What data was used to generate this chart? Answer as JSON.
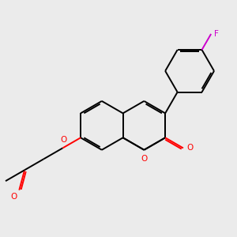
{
  "background_color": "#ebebeb",
  "bond_color": "#000000",
  "oxygen_color": "#ff0000",
  "fluorine_color": "#cc00cc",
  "bond_width": 1.4,
  "figsize": [
    3.0,
    3.0
  ],
  "dpi": 100,
  "xlim": [
    0,
    10
  ],
  "ylim": [
    0,
    10
  ]
}
